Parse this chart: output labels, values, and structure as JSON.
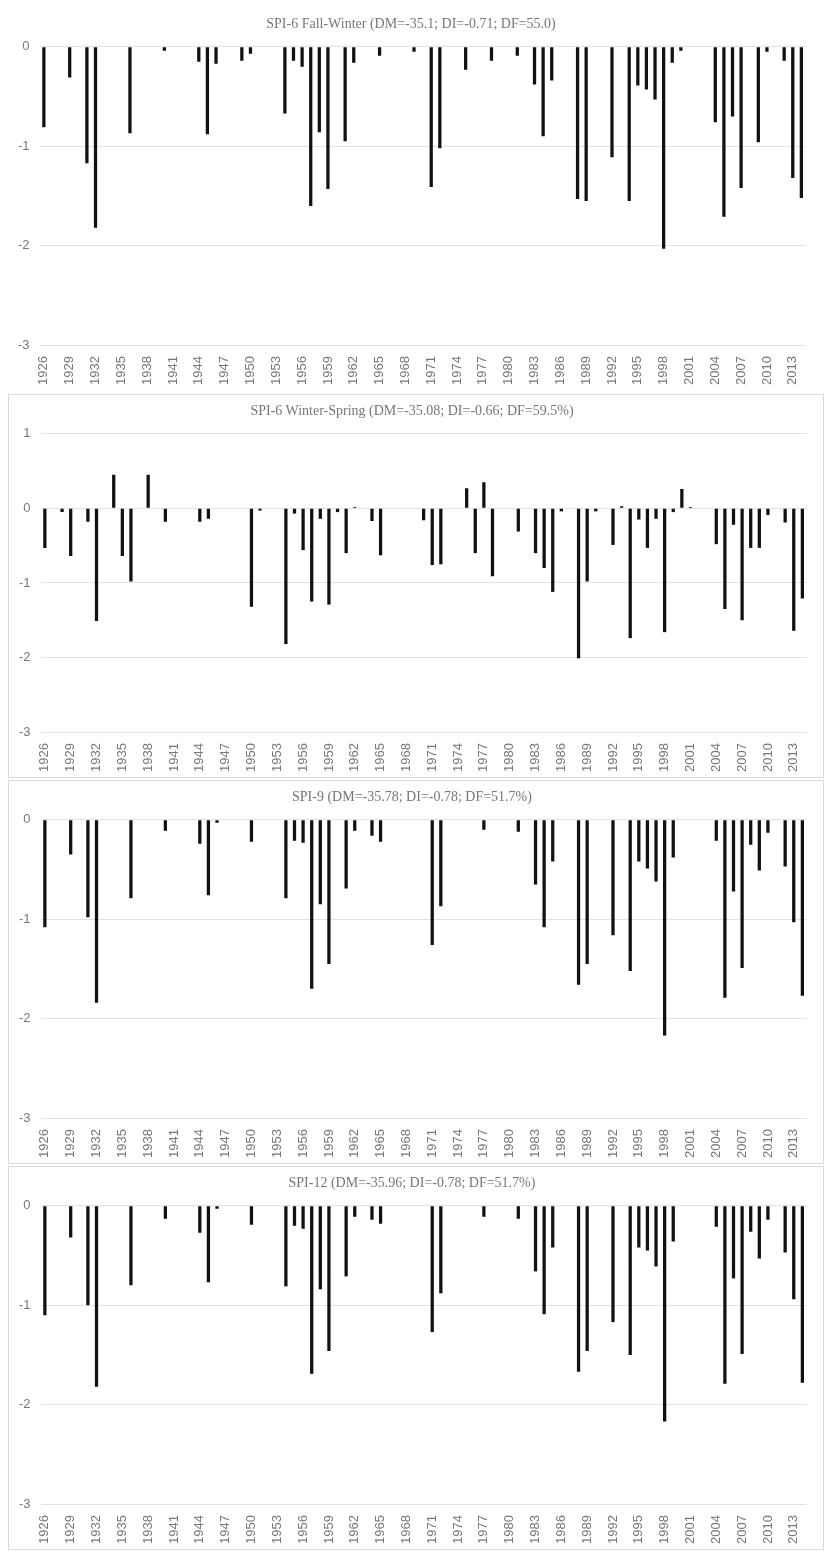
{
  "chart_data": [
    {
      "type": "bar",
      "title": "SPI-6 Fall-Winter (DM=-35.1; DI=-0.71; DF=55.0)",
      "color": "#111111",
      "ylim": [
        -3,
        0
      ],
      "yticks": [
        0,
        -1,
        -2,
        -3
      ],
      "grid": "y",
      "categories": [
        "1926",
        null,
        null,
        "1929",
        null,
        null,
        "1932",
        null,
        null,
        "1935",
        null,
        null,
        "1938",
        null,
        null,
        "1941",
        null,
        null,
        "1944",
        null,
        null,
        "1947",
        null,
        null,
        "1950",
        null,
        null,
        "1953",
        null,
        null,
        "1956",
        null,
        null,
        "1959",
        null,
        null,
        "1962",
        null,
        null,
        "1965",
        null,
        null,
        "1968",
        null,
        null,
        "1971",
        null,
        null,
        "1974",
        null,
        null,
        "1977",
        null,
        null,
        "1980",
        null,
        null,
        "1983",
        null,
        null,
        "1986",
        null,
        null,
        "1989",
        null,
        null,
        "1992",
        null,
        null,
        "1995",
        null,
        null,
        "1998",
        null,
        null,
        "2001",
        null,
        null,
        "2004",
        null,
        null,
        "2007",
        null,
        null,
        "2010",
        null,
        null,
        "2013",
        null
      ],
      "values": [
        -0.81,
        null,
        null,
        -0.31,
        null,
        -1.17,
        -1.82,
        null,
        null,
        null,
        -0.87,
        null,
        null,
        null,
        -0.04,
        null,
        null,
        null,
        -0.15,
        -0.88,
        -0.17,
        null,
        null,
        -0.14,
        -0.07,
        null,
        null,
        null,
        -0.67,
        -0.14,
        -0.2,
        -1.6,
        -0.86,
        -1.43,
        null,
        -0.95,
        -0.16,
        null,
        null,
        -0.09,
        null,
        null,
        null,
        -0.05,
        null,
        -1.41,
        -1.02,
        null,
        null,
        -0.23,
        null,
        null,
        -0.14,
        null,
        null,
        -0.09,
        null,
        -0.38,
        -0.9,
        -0.34,
        null,
        null,
        -1.53,
        -1.55,
        null,
        null,
        -1.11,
        null,
        -1.55,
        -0.39,
        -0.43,
        -0.53,
        -2.03,
        -0.16,
        -0.04,
        null,
        null,
        null,
        -0.76,
        -1.71,
        -0.7,
        -1.42,
        null,
        -0.96,
        -0.05,
        null,
        -0.14,
        -1.32,
        -1.52
      ]
    },
    {
      "type": "bar",
      "title": "SPI-6 Winter-Spring (DM=-35.08; DI=-0.66; DF=59.5%)",
      "color": "#111111",
      "ylim": [
        -3,
        1
      ],
      "yticks": [
        1,
        0,
        -1,
        -2,
        -3
      ],
      "grid": "y",
      "categories": [
        "1926",
        null,
        null,
        "1929",
        null,
        null,
        "1932",
        null,
        null,
        "1935",
        null,
        null,
        "1938",
        null,
        null,
        "1941",
        null,
        null,
        "1944",
        null,
        null,
        "1947",
        null,
        null,
        "1950",
        null,
        null,
        "1953",
        null,
        null,
        "1956",
        null,
        null,
        "1959",
        null,
        null,
        "1962",
        null,
        null,
        "1965",
        null,
        null,
        "1968",
        null,
        null,
        "1971",
        null,
        null,
        "1974",
        null,
        null,
        "1977",
        null,
        null,
        "1980",
        null,
        null,
        "1983",
        null,
        null,
        "1986",
        null,
        null,
        "1989",
        null,
        null,
        "1992",
        null,
        null,
        "1995",
        null,
        null,
        "1998",
        null,
        null,
        "2001",
        null,
        null,
        "2004",
        null,
        null,
        "2007",
        null,
        null,
        "2010",
        null,
        null,
        "2013",
        null
      ],
      "values": [
        -0.53,
        null,
        -0.05,
        -0.64,
        null,
        -0.18,
        -1.51,
        null,
        0.45,
        -0.64,
        -0.98,
        null,
        0.45,
        null,
        -0.18,
        null,
        null,
        null,
        -0.18,
        -0.14,
        null,
        null,
        null,
        null,
        -1.32,
        -0.03,
        null,
        null,
        -1.82,
        -0.07,
        -0.56,
        -1.25,
        -0.14,
        -1.29,
        -0.05,
        -0.6,
        0.02,
        null,
        -0.17,
        -0.63,
        null,
        null,
        null,
        null,
        -0.16,
        -0.76,
        -0.75,
        null,
        null,
        0.27,
        -0.6,
        0.35,
        -0.91,
        null,
        null,
        -0.31,
        null,
        -0.6,
        -0.8,
        -1.12,
        -0.04,
        null,
        -2.01,
        -0.98,
        -0.04,
        null,
        -0.49,
        0.03,
        -1.74,
        -0.15,
        -0.53,
        -0.14,
        -1.66,
        -0.05,
        0.26,
        0.02,
        null,
        null,
        -0.48,
        -1.35,
        -0.22,
        -1.5,
        -0.53,
        -0.53,
        -0.09,
        null,
        -0.19,
        -1.64,
        -1.21
      ]
    },
    {
      "type": "bar",
      "title": "SPI-9 (DM=-35.78; DI=-0.78; DF=51.7%)",
      "color": "#111111",
      "ylim": [
        -3,
        0
      ],
      "yticks": [
        0,
        -1,
        -2,
        -3
      ],
      "grid": "y",
      "categories": [
        "1926",
        null,
        null,
        "1929",
        null,
        null,
        "1932",
        null,
        null,
        "1935",
        null,
        null,
        "1938",
        null,
        null,
        "1941",
        null,
        null,
        "1944",
        null,
        null,
        "1947",
        null,
        null,
        "1950",
        null,
        null,
        "1953",
        null,
        null,
        "1956",
        null,
        null,
        "1959",
        null,
        null,
        "1962",
        null,
        null,
        "1965",
        null,
        null,
        "1968",
        null,
        null,
        "1971",
        null,
        null,
        "1974",
        null,
        null,
        "1977",
        null,
        null,
        "1980",
        null,
        null,
        "1983",
        null,
        null,
        "1986",
        null,
        null,
        "1989",
        null,
        null,
        "1992",
        null,
        null,
        "1995",
        null,
        null,
        "1998",
        null,
        null,
        "2001",
        null,
        null,
        "2004",
        null,
        null,
        "2007",
        null,
        null,
        "2010",
        null,
        null,
        "2013",
        null
      ],
      "values": [
        -1.08,
        null,
        null,
        -0.35,
        null,
        -0.98,
        -1.84,
        null,
        null,
        null,
        -0.79,
        null,
        null,
        null,
        -0.11,
        null,
        null,
        null,
        -0.24,
        -0.76,
        -0.03,
        null,
        null,
        null,
        -0.22,
        null,
        null,
        null,
        -0.79,
        -0.21,
        -0.23,
        -1.7,
        -0.85,
        -1.45,
        null,
        -0.69,
        -0.11,
        null,
        -0.16,
        -0.22,
        null,
        null,
        null,
        null,
        null,
        -1.26,
        -0.87,
        null,
        null,
        null,
        null,
        -0.1,
        null,
        null,
        null,
        -0.12,
        null,
        -0.65,
        -1.08,
        -0.42,
        null,
        null,
        -1.66,
        -1.45,
        null,
        null,
        -1.16,
        null,
        -1.52,
        -0.42,
        -0.49,
        -0.62,
        -2.17,
        -0.38,
        null,
        null,
        null,
        null,
        -0.21,
        -1.79,
        -0.72,
        -1.49,
        -0.25,
        -0.51,
        -0.13,
        null,
        -0.47,
        -1.03,
        -1.77
      ]
    },
    {
      "type": "bar",
      "title": "SPI-12 (DM=-35.96; DI=-0.78; DF=51.7%)",
      "color": "#111111",
      "ylim": [
        -3,
        0
      ],
      "yticks": [
        0,
        -1,
        -2,
        -3
      ],
      "grid": "y",
      "categories": [
        "1926",
        null,
        null,
        "1929",
        null,
        null,
        "1932",
        null,
        null,
        "1935",
        null,
        null,
        "1938",
        null,
        null,
        "1941",
        null,
        null,
        "1944",
        null,
        null,
        "1947",
        null,
        null,
        "1950",
        null,
        null,
        "1953",
        null,
        null,
        "1956",
        null,
        null,
        "1959",
        null,
        null,
        "1962",
        null,
        null,
        "1965",
        null,
        null,
        "1968",
        null,
        null,
        "1971",
        null,
        null,
        "1974",
        null,
        null,
        "1977",
        null,
        null,
        "1980",
        null,
        null,
        "1983",
        null,
        null,
        "1986",
        null,
        null,
        "1989",
        null,
        null,
        "1992",
        null,
        null,
        "1995",
        null,
        null,
        "1998",
        null,
        null,
        "2001",
        null,
        null,
        "2004",
        null,
        null,
        "2007",
        null,
        null,
        "2010",
        null,
        null,
        "2013",
        null
      ],
      "values": [
        -1.1,
        null,
        null,
        -0.32,
        null,
        -1.0,
        -1.82,
        null,
        null,
        null,
        -0.8,
        null,
        null,
        null,
        -0.13,
        null,
        null,
        null,
        -0.27,
        -0.77,
        -0.03,
        null,
        null,
        null,
        -0.19,
        null,
        null,
        null,
        -0.81,
        -0.2,
        -0.23,
        -1.69,
        -0.84,
        -1.46,
        null,
        -0.71,
        -0.11,
        null,
        -0.14,
        -0.18,
        null,
        null,
        null,
        null,
        null,
        -1.27,
        -0.88,
        null,
        null,
        null,
        null,
        -0.11,
        null,
        null,
        null,
        -0.13,
        null,
        -0.66,
        -1.09,
        -0.42,
        null,
        null,
        -1.67,
        -1.46,
        null,
        null,
        -1.17,
        null,
        -1.5,
        -0.42,
        -0.45,
        -0.61,
        -2.17,
        -0.36,
        null,
        null,
        null,
        null,
        -0.21,
        -1.79,
        -0.73,
        -1.49,
        -0.26,
        -0.53,
        -0.14,
        null,
        -0.47,
        -0.94,
        -1.78
      ]
    }
  ]
}
